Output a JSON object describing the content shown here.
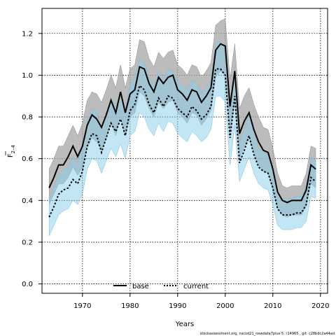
{
  "chart_data": {
    "type": "line",
    "xlabel": "Years",
    "ylabel": "F",
    "ylabel_sub": "2–4",
    "xlim": [
      1961.5,
      2021.5
    ],
    "ylim": [
      -0.045,
      1.32
    ],
    "xticks": [
      1970,
      1980,
      1990,
      2000,
      2010,
      2020
    ],
    "yticks": [
      0.0,
      0.2,
      0.4,
      0.6,
      0.8,
      1.0,
      1.2
    ],
    "grid": true,
    "legend_position": "bottom-center",
    "footer": "stockassessment.org, nscod21_newdata7plus-5, r14965 , git: c28bdc2a44ad",
    "x": [
      1963,
      1964,
      1965,
      1966,
      1967,
      1968,
      1969,
      1970,
      1971,
      1972,
      1973,
      1974,
      1975,
      1976,
      1977,
      1978,
      1979,
      1980,
      1981,
      1982,
      1983,
      1984,
      1985,
      1986,
      1987,
      1988,
      1989,
      1990,
      1991,
      1992,
      1993,
      1994,
      1995,
      1996,
      1997,
      1998,
      1999,
      2000,
      2001,
      2002,
      2003,
      2004,
      2005,
      2006,
      2007,
      2008,
      2009,
      2010,
      2011,
      2012,
      2013,
      2014,
      2015,
      2016,
      2017,
      2018,
      2019
    ],
    "series": [
      {
        "name": "base",
        "color": "#000000",
        "band_color": "#a6a6a6",
        "values": [
          0.46,
          0.51,
          0.57,
          0.57,
          0.61,
          0.66,
          0.61,
          0.66,
          0.76,
          0.81,
          0.79,
          0.75,
          0.81,
          0.88,
          0.82,
          0.92,
          0.82,
          0.91,
          0.93,
          1.04,
          1.03,
          0.96,
          0.92,
          0.99,
          0.96,
          0.99,
          1.0,
          0.93,
          0.91,
          0.88,
          0.93,
          0.92,
          0.87,
          0.9,
          0.94,
          1.12,
          1.15,
          1.14,
          0.85,
          1.02,
          0.72,
          0.78,
          0.82,
          0.74,
          0.68,
          0.64,
          0.63,
          0.55,
          0.44,
          0.4,
          0.39,
          0.4,
          0.4,
          0.4,
          0.45,
          0.57,
          0.55
        ],
        "lower": [
          0.38,
          0.43,
          0.48,
          0.48,
          0.51,
          0.56,
          0.52,
          0.56,
          0.65,
          0.7,
          0.68,
          0.64,
          0.7,
          0.77,
          0.71,
          0.8,
          0.71,
          0.8,
          0.82,
          0.92,
          0.9,
          0.84,
          0.8,
          0.87,
          0.84,
          0.87,
          0.88,
          0.82,
          0.8,
          0.77,
          0.82,
          0.81,
          0.76,
          0.79,
          0.83,
          0.99,
          1.02,
          1.0,
          0.72,
          0.88,
          0.6,
          0.66,
          0.7,
          0.63,
          0.57,
          0.54,
          0.53,
          0.45,
          0.36,
          0.33,
          0.32,
          0.33,
          0.33,
          0.33,
          0.37,
          0.48,
          0.46
        ],
        "upper": [
          0.55,
          0.6,
          0.66,
          0.66,
          0.71,
          0.76,
          0.71,
          0.77,
          0.88,
          0.92,
          0.91,
          0.87,
          0.93,
          1.0,
          0.94,
          1.05,
          0.94,
          1.03,
          1.05,
          1.17,
          1.16,
          1.08,
          1.04,
          1.11,
          1.08,
          1.11,
          1.12,
          1.05,
          1.03,
          1.0,
          1.05,
          1.04,
          0.99,
          1.02,
          1.06,
          1.24,
          1.26,
          1.27,
          0.98,
          1.15,
          0.84,
          0.9,
          0.94,
          0.86,
          0.8,
          0.75,
          0.74,
          0.65,
          0.53,
          0.47,
          0.46,
          0.47,
          0.47,
          0.47,
          0.53,
          0.66,
          0.65
        ]
      },
      {
        "name": "current",
        "color": "#000000",
        "band_color": "#87ceeb",
        "values": [
          0.32,
          0.37,
          0.43,
          0.45,
          0.46,
          0.5,
          0.48,
          0.54,
          0.66,
          0.72,
          0.71,
          0.63,
          0.7,
          0.77,
          0.73,
          0.79,
          0.71,
          0.83,
          0.86,
          0.95,
          0.93,
          0.86,
          0.82,
          0.89,
          0.85,
          0.9,
          0.89,
          0.84,
          0.82,
          0.8,
          0.85,
          0.83,
          0.79,
          0.81,
          0.85,
          1.03,
          1.03,
          1.0,
          0.7,
          0.9,
          0.58,
          0.64,
          0.71,
          0.62,
          0.56,
          0.54,
          0.53,
          0.46,
          0.36,
          0.33,
          0.33,
          0.33,
          0.34,
          0.34,
          0.38,
          0.51,
          0.49
        ],
        "lower": [
          0.23,
          0.28,
          0.33,
          0.35,
          0.36,
          0.4,
          0.38,
          0.43,
          0.55,
          0.6,
          0.59,
          0.53,
          0.59,
          0.65,
          0.61,
          0.67,
          0.6,
          0.71,
          0.73,
          0.82,
          0.8,
          0.74,
          0.71,
          0.77,
          0.73,
          0.78,
          0.77,
          0.72,
          0.7,
          0.68,
          0.73,
          0.71,
          0.68,
          0.7,
          0.74,
          0.9,
          0.9,
          0.87,
          0.57,
          0.76,
          0.49,
          0.55,
          0.61,
          0.53,
          0.48,
          0.46,
          0.45,
          0.38,
          0.28,
          0.26,
          0.26,
          0.26,
          0.27,
          0.27,
          0.3,
          0.42,
          0.41
        ],
        "upper": [
          0.41,
          0.46,
          0.53,
          0.55,
          0.56,
          0.61,
          0.58,
          0.65,
          0.78,
          0.84,
          0.83,
          0.74,
          0.82,
          0.89,
          0.85,
          0.92,
          0.83,
          0.96,
          0.99,
          1.08,
          1.06,
          0.99,
          0.95,
          1.02,
          0.98,
          1.03,
          1.02,
          0.97,
          0.95,
          0.93,
          0.98,
          0.96,
          0.91,
          0.94,
          0.98,
          1.16,
          1.16,
          1.13,
          0.83,
          1.04,
          0.68,
          0.74,
          0.82,
          0.72,
          0.65,
          0.63,
          0.62,
          0.55,
          0.44,
          0.41,
          0.41,
          0.41,
          0.42,
          0.42,
          0.47,
          0.61,
          0.59
        ]
      }
    ]
  }
}
